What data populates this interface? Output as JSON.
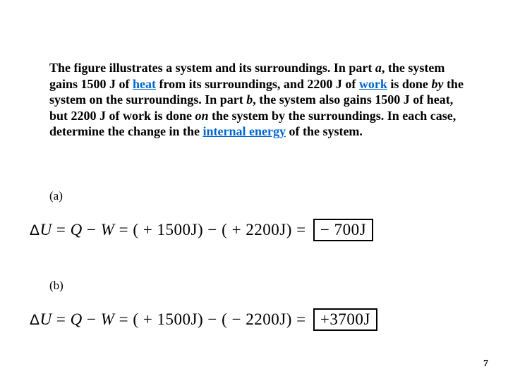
{
  "problem": {
    "html": "The figure illustrates a system and its surroundings. In part <span class=\"ital\">a</span>, the system gains 1500 J of <a data-name=\"link-heat\" data-interactable=\"true\">heat</a> from its surroundings, and 2200 J of <a data-name=\"link-work\" data-interactable=\"true\">work</a> is done <span class=\"ital\">by</span> the system on the surroundings. In part <span class=\"ital\">b</span>, the system also gains 1500 J of heat, but 2200 J of work is done <span class=\"ital\">on</span> the system by the surroundings. In each case, determine the change in the <a data-name=\"link-internal-energy\" data-interactable=\"true\">internal energy</a> of the system.",
    "font_size": 18,
    "link_color": "#0066cc"
  },
  "parts": {
    "a": {
      "label": "(a)",
      "Q": "+ 1500J",
      "W_sign": "−",
      "W": "+ 2200J",
      "result": "− 700J"
    },
    "b": {
      "label": "(b)",
      "Q": "+ 1500J",
      "W_sign": "−",
      "W": "− 2200J",
      "result": "+3700J"
    }
  },
  "equation": {
    "lhs": "Δ",
    "U": "U",
    "eq": " = ",
    "Qvar": "Q",
    "minus": " − ",
    "Wvar": "W",
    "open": " = ( ",
    "close": ") ",
    "open2": " ( ",
    "final_eq": " = "
  },
  "page_number": "7",
  "colors": {
    "text": "#000000",
    "background": "#ffffff",
    "box_border": "#000000"
  }
}
